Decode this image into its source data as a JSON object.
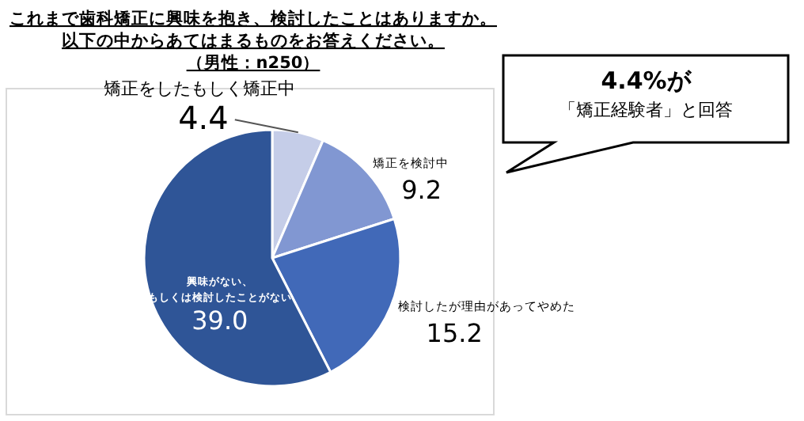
{
  "chart_data": {
    "type": "pie",
    "title": "これまで歯科矯正に興味を抱き、検討したことはありますか。以下の中からあてはまるものをお答えください。",
    "subtitle": "（男性：n250）",
    "categories": [
      "矯正をしたもしく矯正中",
      "矯正を検討中",
      "検討したが理由があってやめた",
      "興味がない、もしくは検討したことがない"
    ],
    "values": [
      4.4,
      9.2,
      15.2,
      39.0
    ],
    "value_labels": [
      "4.4",
      "9.2",
      "15.2",
      "39.0"
    ],
    "colors": [
      "#c5cde8",
      "#8197d2",
      "#4169b8",
      "#2f5597"
    ],
    "annotations": [
      "4.4%が「矯正経験者」と回答"
    ]
  }
}
